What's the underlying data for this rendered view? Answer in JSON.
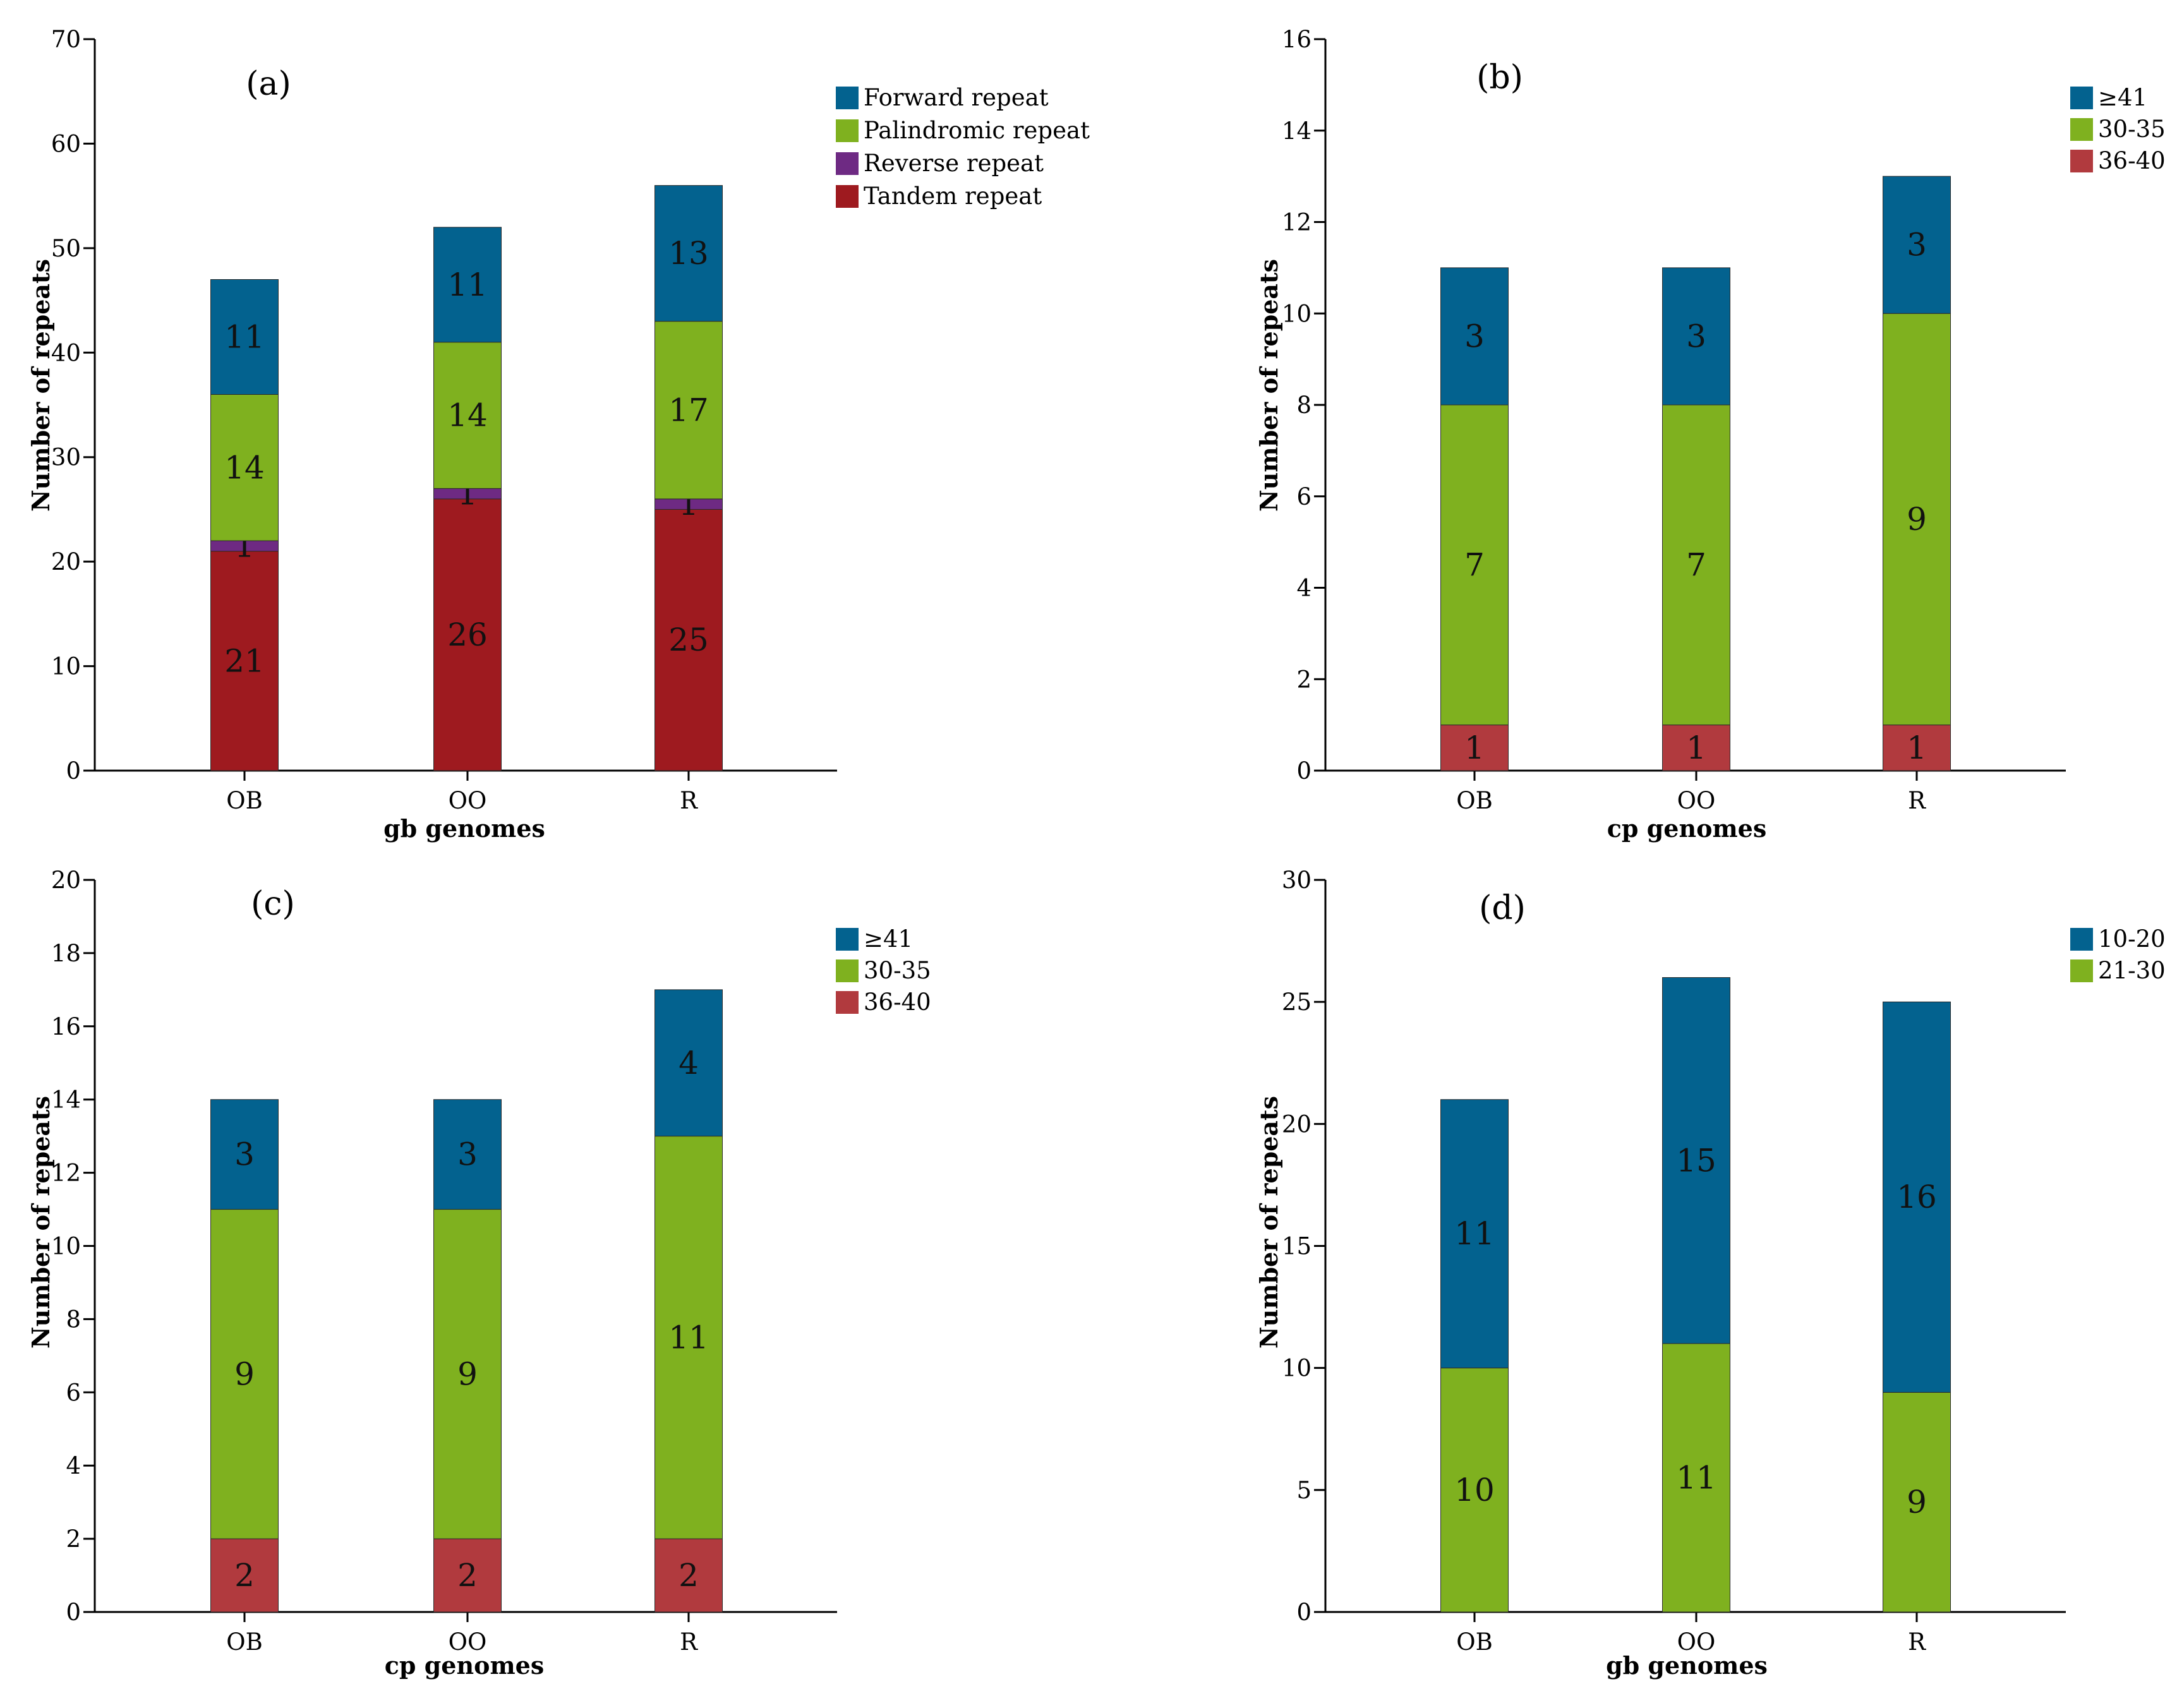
{
  "colors": {
    "blue": "#03628f",
    "green": "#7fb11f",
    "purple": "#6e2a83",
    "darkred": "#9e1a1f",
    "red": "#b13a3e"
  },
  "chart_data": [
    {
      "type": "bar",
      "stacked": true,
      "panel_label": "(a)",
      "xlabel": "gb genomes",
      "ylabel": "Number of repeats",
      "categories": [
        "OB",
        "OO",
        "R"
      ],
      "ylim": [
        0,
        70
      ],
      "yticks": [
        0,
        10,
        20,
        30,
        40,
        50,
        60,
        70
      ],
      "legend": [
        "Forward repeat",
        "Palindromic repeat",
        "Reverse repeat",
        "Tandem repeat"
      ],
      "series": [
        {
          "name": "Tandem repeat",
          "color": "#9e1a1f",
          "values": [
            21,
            26,
            25
          ]
        },
        {
          "name": "Reverse repeat",
          "color": "#6e2a83",
          "values": [
            1,
            1,
            1
          ]
        },
        {
          "name": "Palindromic repeat",
          "color": "#7fb11f",
          "values": [
            14,
            14,
            17
          ]
        },
        {
          "name": "Forward repeat",
          "color": "#03628f",
          "values": [
            11,
            11,
            13
          ]
        }
      ]
    },
    {
      "type": "bar",
      "stacked": true,
      "panel_label": "(b)",
      "xlabel": "cp genomes",
      "ylabel": "Number of repeats",
      "categories": [
        "OB",
        "OO",
        "R"
      ],
      "ylim": [
        0,
        16
      ],
      "yticks": [
        0,
        2,
        4,
        6,
        8,
        10,
        12,
        14,
        16
      ],
      "legend": [
        "≥41",
        "30-35",
        "36-40"
      ],
      "series": [
        {
          "name": "36-40",
          "color": "#b13a3e",
          "values": [
            1,
            1,
            1
          ]
        },
        {
          "name": "30-35",
          "color": "#7fb11f",
          "values": [
            7,
            7,
            9
          ]
        },
        {
          "name": "≥41",
          "color": "#03628f",
          "values": [
            3,
            3,
            3
          ]
        }
      ]
    },
    {
      "type": "bar",
      "stacked": true,
      "panel_label": "(c)",
      "xlabel": "cp genomes",
      "ylabel": "Number of repeats",
      "categories": [
        "OB",
        "OO",
        "R"
      ],
      "ylim": [
        0,
        20
      ],
      "yticks": [
        0,
        2,
        4,
        6,
        8,
        10,
        12,
        14,
        16,
        18,
        20
      ],
      "legend": [
        "≥41",
        "30-35",
        "36-40"
      ],
      "series": [
        {
          "name": "36-40",
          "color": "#b13a3e",
          "values": [
            2,
            2,
            2
          ]
        },
        {
          "name": "30-35",
          "color": "#7fb11f",
          "values": [
            9,
            9,
            11
          ]
        },
        {
          "name": "≥41",
          "color": "#03628f",
          "values": [
            3,
            3,
            4
          ]
        }
      ]
    },
    {
      "type": "bar",
      "stacked": true,
      "panel_label": "(d)",
      "xlabel": "gb genomes",
      "ylabel": "Number of repeats",
      "categories": [
        "OB",
        "OO",
        "R"
      ],
      "ylim": [
        0,
        30
      ],
      "yticks": [
        0,
        5,
        10,
        15,
        20,
        25,
        30
      ],
      "legend": [
        "10-20",
        "21-30"
      ],
      "series": [
        {
          "name": "21-30",
          "color": "#7fb11f",
          "values": [
            10,
            11,
            9
          ]
        },
        {
          "name": "10-20",
          "color": "#03628f",
          "values": [
            11,
            15,
            16
          ]
        }
      ]
    }
  ]
}
